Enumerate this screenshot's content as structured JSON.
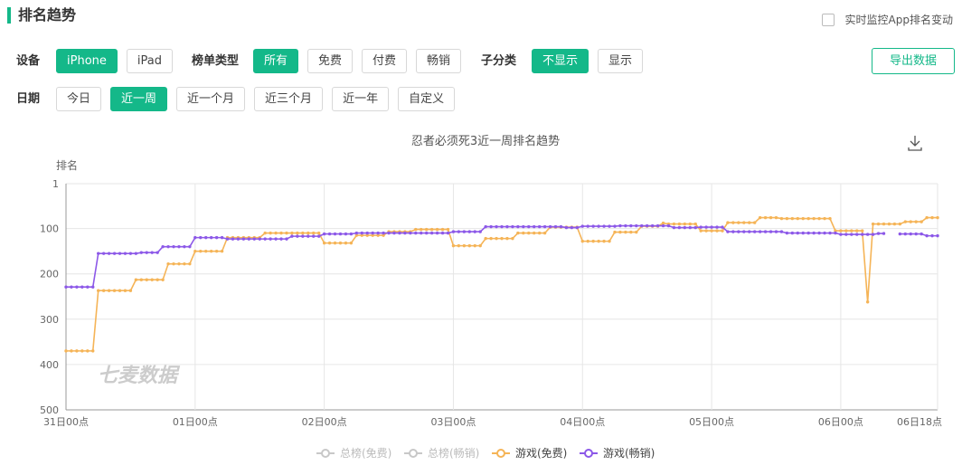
{
  "header": {
    "title": "排名趋势",
    "monitor": "实时监控App排名变动"
  },
  "filters": [
    {
      "label": "设备",
      "options": [
        "iPhone",
        "iPad"
      ],
      "selected": 0
    },
    {
      "label": "榜单类型",
      "options": [
        "所有",
        "免费",
        "付费",
        "畅销"
      ],
      "selected": 0
    },
    {
      "label": "子分类",
      "options": [
        "不显示",
        "显示"
      ],
      "selected": 0
    },
    {
      "label": "日期",
      "options": [
        "今日",
        "近一周",
        "近一个月",
        "近三个月",
        "近一年",
        "自定义"
      ],
      "selected": 1
    }
  ],
  "export": "导出数据",
  "chart_data": {
    "type": "line",
    "title": "忍者必须死3近一周排名趋势",
    "y_label": "排名",
    "watermark": "七麦数据",
    "y_inverted": true,
    "grid": true,
    "legend": "bottom",
    "xlim": [
      0,
      162
    ],
    "xticks": [
      {
        "value": 0,
        "label": "31日00点"
      },
      {
        "value": 24,
        "label": "01日00点"
      },
      {
        "value": 48,
        "label": "02日00点"
      },
      {
        "value": 72,
        "label": "03日00点"
      },
      {
        "value": 96,
        "label": "04日00点"
      },
      {
        "value": 120,
        "label": "05日00点"
      },
      {
        "value": 144,
        "label": "06日00点"
      },
      {
        "value": 162,
        "label": "06日18点"
      }
    ],
    "ylim": [
      1,
      500
    ],
    "yticks": [
      1,
      100,
      200,
      300,
      400,
      500
    ],
    "legend_inactive": [
      {
        "name": "总榜(免费)",
        "color": "#c8c8c8"
      },
      {
        "name": "总榜(畅销)",
        "color": "#c8c8c8"
      }
    ],
    "x": [
      0,
      1,
      2,
      3,
      4,
      5,
      6,
      7,
      8,
      9,
      10,
      11,
      12,
      13,
      14,
      15,
      16,
      17,
      18,
      19,
      20,
      21,
      22,
      23,
      24,
      25,
      26,
      27,
      28,
      29,
      30,
      31,
      32,
      33,
      34,
      35,
      36,
      37,
      38,
      39,
      40,
      41,
      42,
      43,
      44,
      45,
      46,
      47,
      48,
      49,
      50,
      51,
      52,
      53,
      54,
      55,
      56,
      57,
      58,
      59,
      60,
      61,
      62,
      63,
      64,
      65,
      66,
      67,
      68,
      69,
      70,
      71,
      72,
      73,
      74,
      75,
      76,
      77,
      78,
      79,
      80,
      81,
      82,
      83,
      84,
      85,
      86,
      87,
      88,
      89,
      90,
      91,
      92,
      93,
      94,
      95,
      96,
      97,
      98,
      99,
      100,
      101,
      102,
      103,
      104,
      105,
      106,
      107,
      108,
      109,
      110,
      111,
      112,
      113,
      114,
      115,
      116,
      117,
      118,
      119,
      120,
      121,
      122,
      123,
      124,
      125,
      126,
      127,
      128,
      129,
      130,
      131,
      132,
      133,
      134,
      135,
      136,
      137,
      138,
      139,
      140,
      141,
      142,
      143,
      144,
      145,
      146,
      147,
      148,
      149,
      150,
      151,
      152,
      153,
      154,
      155,
      156,
      157,
      158,
      159,
      160,
      161,
      162
    ],
    "series": [
      {
        "name": "游戏(免费)",
        "color": "#f5b457",
        "values": [
          370,
          370,
          370,
          370,
          370,
          370,
          237,
          237,
          237,
          237,
          237,
          237,
          237,
          213,
          213,
          213,
          213,
          213,
          213,
          178,
          178,
          178,
          178,
          178,
          150,
          150,
          150,
          150,
          150,
          150,
          120,
          120,
          120,
          120,
          120,
          120,
          120,
          110,
          110,
          110,
          110,
          110,
          110,
          110,
          110,
          110,
          110,
          110,
          132,
          132,
          132,
          132,
          132,
          132,
          115,
          115,
          115,
          115,
          115,
          115,
          107,
          107,
          107,
          107,
          107,
          102,
          102,
          102,
          102,
          102,
          102,
          102,
          138,
          138,
          138,
          138,
          138,
          138,
          122,
          122,
          122,
          122,
          122,
          122,
          110,
          110,
          110,
          110,
          110,
          110,
          97,
          97,
          97,
          97,
          97,
          97,
          128,
          128,
          128,
          128,
          128,
          128,
          108,
          108,
          108,
          108,
          108,
          95,
          95,
          95,
          95,
          88,
          90,
          90,
          90,
          90,
          90,
          90,
          105,
          105,
          105,
          105,
          105,
          87,
          87,
          87,
          87,
          87,
          87,
          76,
          76,
          76,
          76,
          78,
          78,
          78,
          78,
          78,
          78,
          78,
          78,
          78,
          78,
          105,
          105,
          105,
          105,
          105,
          105,
          262,
          90,
          90,
          90,
          90,
          90,
          90,
          85,
          85,
          85,
          85,
          76,
          76,
          76
        ]
      },
      {
        "name": "游戏(畅销)",
        "color": "#8c58e8",
        "values": [
          229,
          229,
          229,
          229,
          229,
          229,
          155,
          155,
          155,
          155,
          155,
          155,
          155,
          155,
          153,
          153,
          153,
          153,
          140,
          140,
          140,
          140,
          140,
          140,
          120,
          120,
          120,
          120,
          120,
          120,
          123,
          123,
          123,
          123,
          123,
          123,
          123,
          123,
          123,
          123,
          123,
          123,
          117,
          117,
          117,
          117,
          117,
          117,
          112,
          112,
          112,
          112,
          112,
          112,
          110,
          110,
          110,
          110,
          110,
          110,
          110,
          110,
          110,
          110,
          110,
          110,
          110,
          110,
          110,
          110,
          110,
          110,
          107,
          107,
          107,
          107,
          107,
          107,
          96,
          96,
          96,
          96,
          96,
          96,
          96,
          96,
          96,
          96,
          96,
          96,
          96,
          96,
          96,
          98,
          98,
          98,
          95,
          95,
          95,
          95,
          95,
          95,
          95,
          94,
          94,
          94,
          94,
          94,
          94,
          94,
          94,
          94,
          94,
          98,
          98,
          98,
          98,
          98,
          97,
          97,
          97,
          97,
          97,
          107,
          107,
          107,
          107,
          107,
          107,
          107,
          107,
          107,
          107,
          107,
          110,
          110,
          110,
          110,
          110,
          110,
          110,
          110,
          110,
          110,
          113,
          113,
          113,
          113,
          113,
          113,
          113,
          111,
          111,
          null,
          null,
          112,
          112,
          112,
          112,
          112,
          116,
          116,
          116
        ]
      }
    ]
  }
}
